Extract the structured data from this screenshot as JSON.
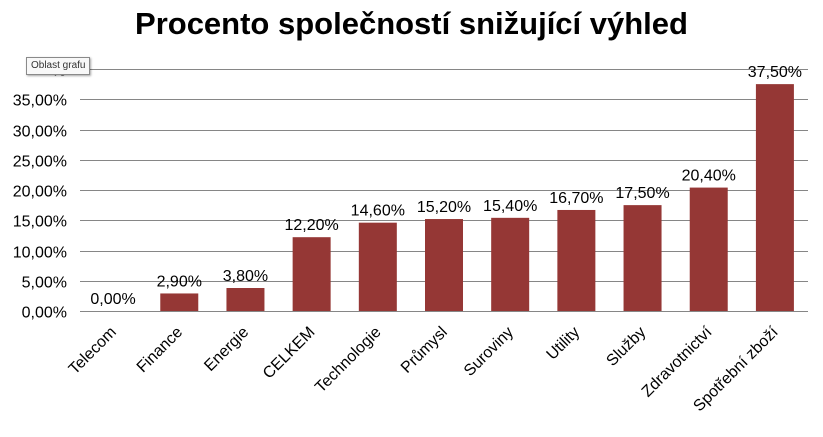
{
  "chart_data": {
    "type": "bar",
    "title": "Procento společností snižující výhled",
    "categories": [
      "Telecom",
      "Finance",
      "Energie",
      "CELKEM",
      "Technologie",
      "Průmysl",
      "Suroviny",
      "Utility",
      "Služby",
      "Zdravotnictví",
      "Spotřební zboží"
    ],
    "values": [
      0.0,
      2.9,
      3.8,
      12.2,
      14.6,
      15.2,
      15.4,
      16.7,
      17.5,
      20.4,
      37.5
    ],
    "data_labels": [
      "0,00%",
      "2,90%",
      "3,80%",
      "12,20%",
      "14,60%",
      "15,20%",
      "15,40%",
      "16,70%",
      "17,50%",
      "20,40%",
      "37,50%"
    ],
    "y_ticks": [
      "0,00%",
      "5,00%",
      "10,00%",
      "15,00%",
      "20,00%",
      "25,00%",
      "30,00%",
      "35,00%",
      "40"
    ],
    "ylim": [
      0,
      40
    ],
    "grid": true,
    "legend": "none",
    "xlabel": "",
    "ylabel": "",
    "bar_color": "#953735",
    "grid_color": "#868686"
  },
  "tooltip": "Oblast grafu"
}
